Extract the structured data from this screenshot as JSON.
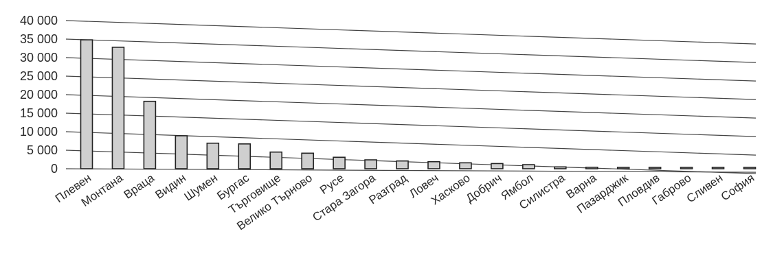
{
  "chart_data": {
    "type": "bar",
    "title": "",
    "xlabel": "",
    "ylabel": "",
    "ylim": [
      0,
      40000
    ],
    "yticks": [
      0,
      5000,
      10000,
      15000,
      20000,
      25000,
      30000,
      35000,
      40000
    ],
    "ytick_labels": [
      "0",
      "5 000",
      "10 000",
      "15 000",
      "20 000",
      "25 000",
      "30 000",
      "35 000",
      "40 000"
    ],
    "grid": true,
    "legend": "none",
    "bar_color": "#cfcfcf",
    "categories": [
      "Плевен",
      "Монтана",
      "Враца",
      "Видин",
      "Шумен",
      "Бургас",
      "Търговище",
      "Велико Търново",
      "Русе",
      "Стара Загора",
      "Разград",
      "Ловеч",
      "Хасково",
      "Добрич",
      "Ямбол",
      "Силистра",
      "Варна",
      "Пазарджик",
      "Пловдив",
      "Габрово",
      "Сливен",
      "София"
    ],
    "values": [
      34800,
      32800,
      18200,
      8900,
      6900,
      6700,
      4500,
      4200,
      3100,
      2400,
      2100,
      1900,
      1600,
      1400,
      1100,
      500,
      400,
      200,
      100,
      50,
      30,
      20
    ]
  }
}
